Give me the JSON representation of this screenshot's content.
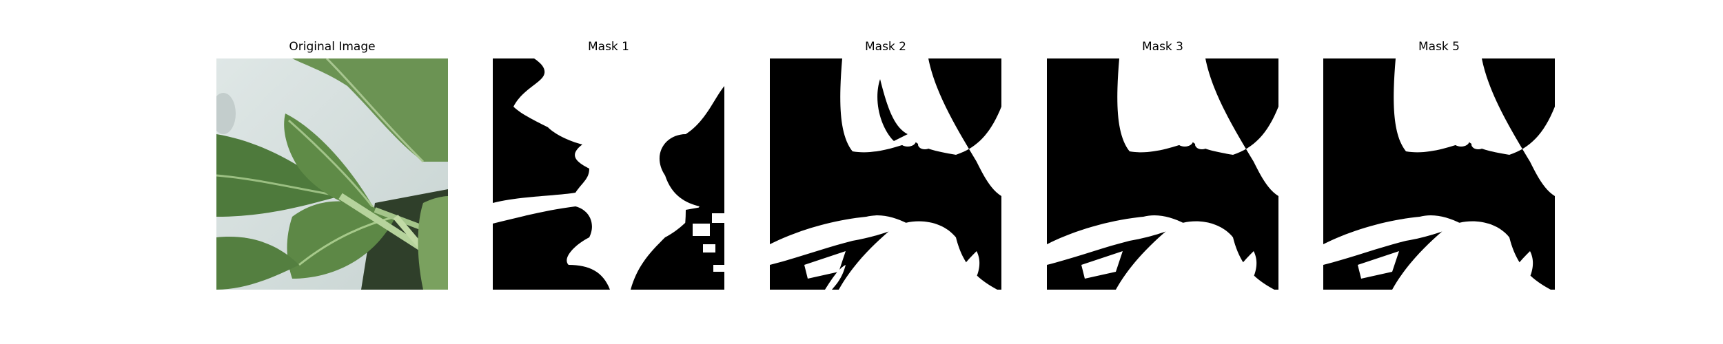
{
  "panels": [
    {
      "title": "Original Image",
      "type": "photo",
      "subject": "green leafy plant (bok choy) close-up"
    },
    {
      "title": "Mask 1",
      "type": "binary-mask"
    },
    {
      "title": "Mask 2",
      "type": "binary-mask"
    },
    {
      "title": "Mask 3",
      "type": "binary-mask"
    },
    {
      "title": "Mask 5",
      "type": "binary-mask"
    }
  ],
  "colors": {
    "mask_foreground": "#ffffff",
    "mask_background": "#000000",
    "leaf_dark": "#4f7a3c",
    "leaf_mid": "#6f9a58",
    "leaf_light": "#9fc07e",
    "background_light": "#d7e0e2"
  }
}
